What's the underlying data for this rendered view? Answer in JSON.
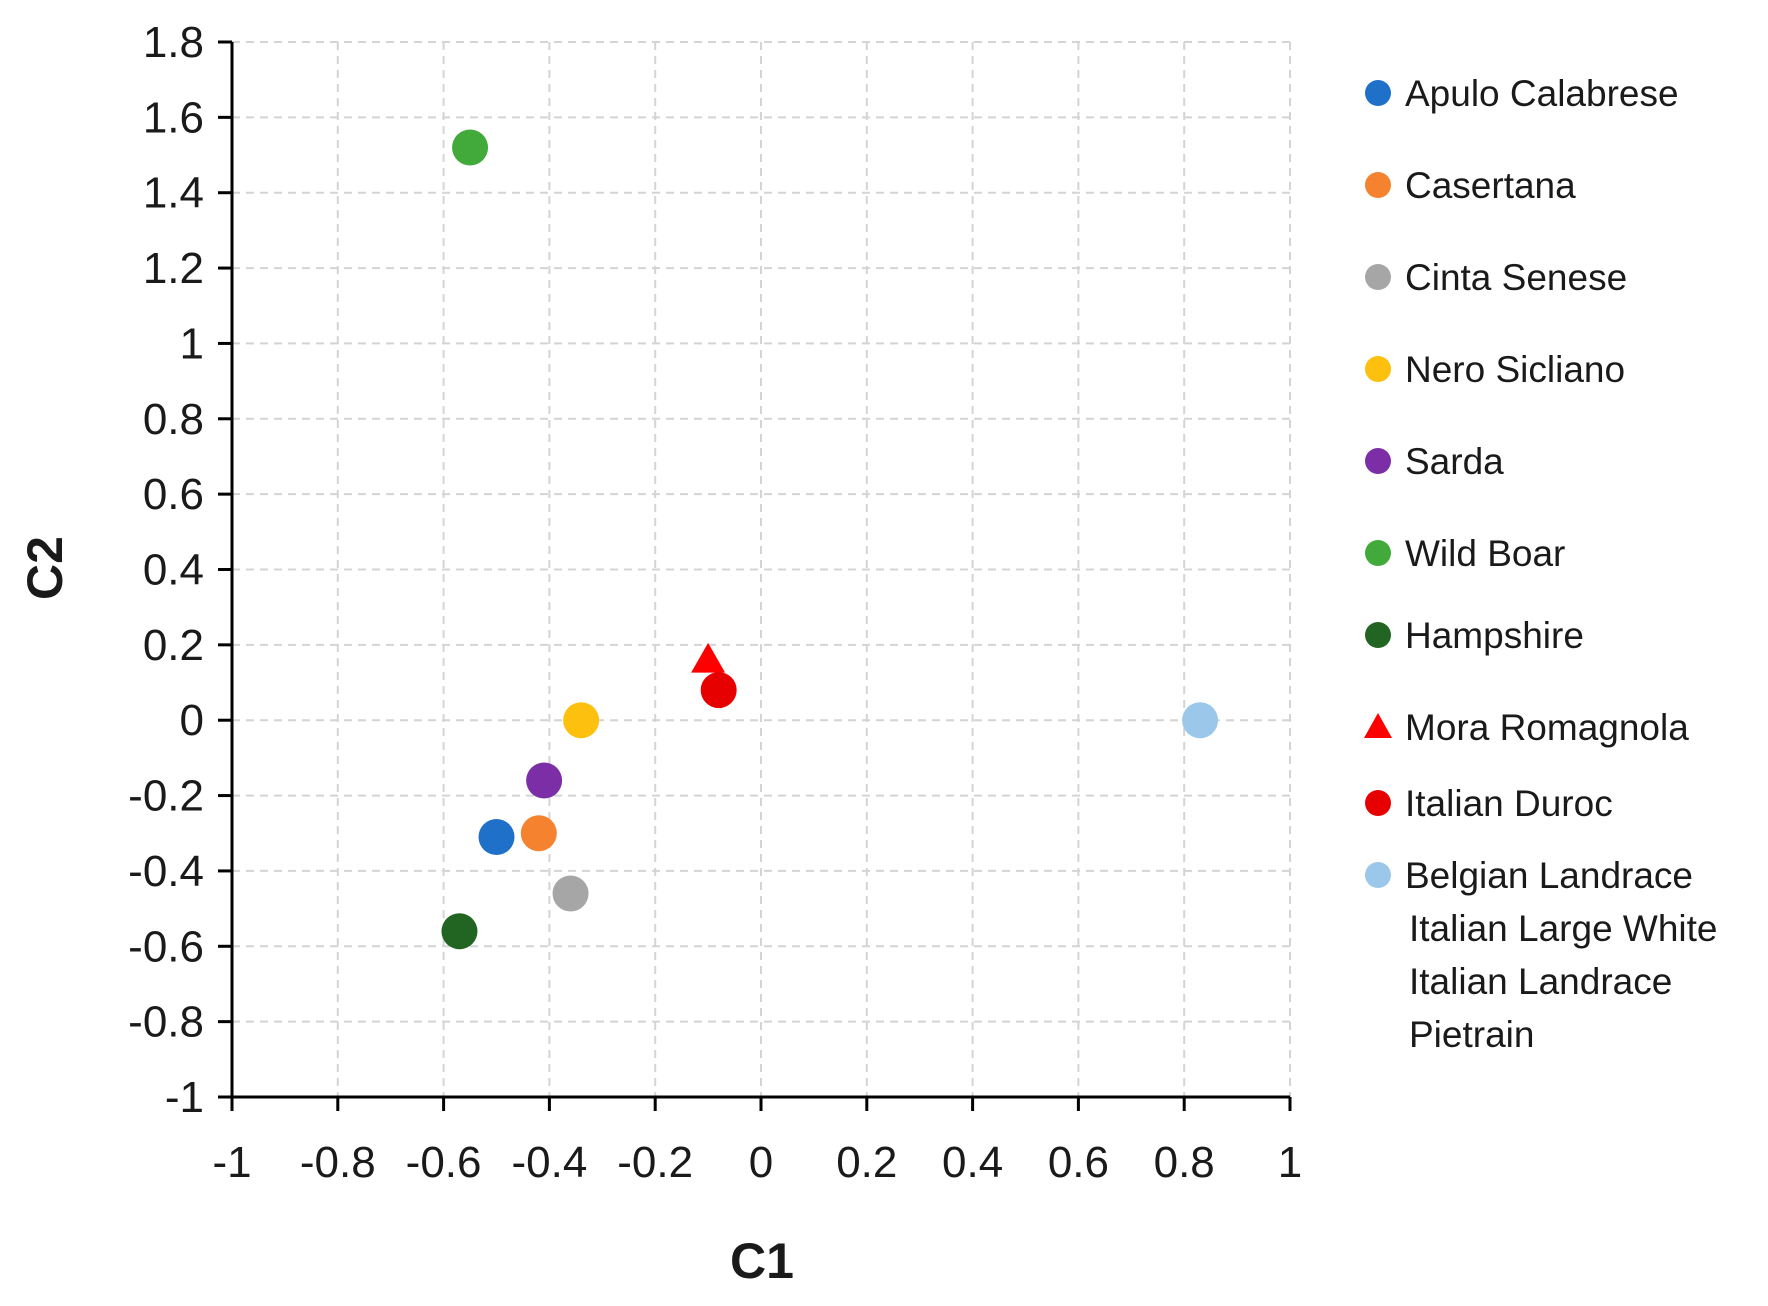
{
  "chart_data": {
    "type": "scatter",
    "xlabel": "C1",
    "ylabel": "C2",
    "xlim": [
      -1,
      1
    ],
    "ylim": [
      -1,
      1.8
    ],
    "xticks": [
      "-1",
      "-0.8",
      "-0.6",
      "-0.4",
      "-0.2",
      "0",
      "0.2",
      "0.4",
      "0.6",
      "0.8",
      "1"
    ],
    "yticks": [
      "1.8",
      "1.6",
      "1.4",
      "1.2",
      "1",
      "0.8",
      "0.6",
      "0.4",
      "0.2",
      "0",
      "-0.2",
      "-0.4",
      "-0.6",
      "-0.8",
      "-1"
    ],
    "grid": true,
    "legend_position": "right",
    "series": [
      {
        "name": "Apulo Calabrese",
        "color": "#1f70c8",
        "marker": "circle",
        "x": -0.5,
        "y": -0.31
      },
      {
        "name": "Casertana",
        "color": "#f4822e",
        "marker": "circle",
        "x": -0.42,
        "y": -0.3
      },
      {
        "name": "Cinta Senese",
        "color": "#a6a6a6",
        "marker": "circle",
        "x": -0.36,
        "y": -0.46
      },
      {
        "name": "Nero Sicliano",
        "color": "#fdc00f",
        "marker": "circle",
        "x": -0.34,
        "y": 0.0
      },
      {
        "name": "Sarda",
        "color": "#7c2ea6",
        "marker": "circle",
        "x": -0.41,
        "y": -0.16
      },
      {
        "name": "Wild Boar",
        "color": "#41aa3a",
        "marker": "circle",
        "x": -0.55,
        "y": 1.52
      },
      {
        "name": "Hampshire",
        "color": "#226422",
        "marker": "circle",
        "x": -0.57,
        "y": -0.56
      },
      {
        "name": "Mora Romagnola",
        "color": "#ff0000",
        "marker": "triangle",
        "x": -0.1,
        "y": 0.16
      },
      {
        "name": "Italian Duroc",
        "color": "#e60000",
        "marker": "circle",
        "x": -0.08,
        "y": 0.08
      },
      {
        "name": "Belgian Landrace",
        "extra_lines": [
          "Italian Large White",
          "Italian Landrace",
          "Pietrain"
        ],
        "color": "#9bc8ea",
        "marker": "circle",
        "x": 0.83,
        "y": 0.0
      }
    ]
  }
}
